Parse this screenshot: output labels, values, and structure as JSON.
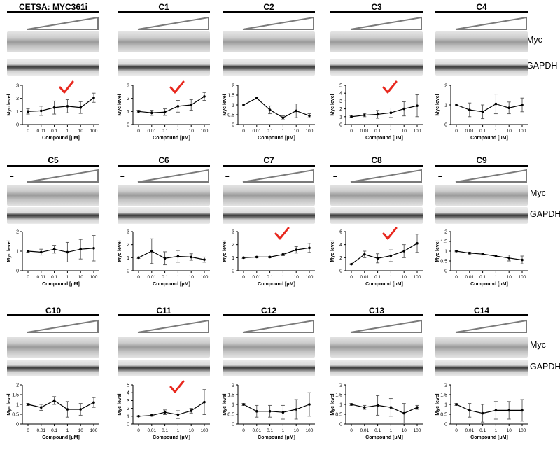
{
  "row_labels": {
    "band": "Myc",
    "loading": "GAPDH"
  },
  "vehicle_mark": "–",
  "check_color": "#e8281e",
  "panels": [
    {
      "title": "CETSA: MYC361i",
      "checked": true,
      "chart_data": {
        "type": "line",
        "x": [
          "0",
          "0.01",
          "0.1",
          "1",
          "10",
          "100"
        ],
        "values": [
          1.0,
          1.05,
          1.3,
          1.4,
          1.3,
          2.05
        ],
        "errors": [
          0.2,
          0.35,
          0.5,
          0.5,
          0.45,
          0.35
        ],
        "xlabel": "Compound [μM]",
        "ylabel": "Myc level",
        "ylim": [
          0,
          3
        ],
        "yticks": [
          0,
          1,
          2,
          3
        ]
      }
    },
    {
      "title": "C1",
      "checked": true,
      "chart_data": {
        "type": "line",
        "x": [
          "0",
          "0.01",
          "0.1",
          "1",
          "10",
          "100"
        ],
        "values": [
          1.0,
          0.9,
          0.95,
          1.4,
          1.5,
          2.15
        ],
        "errors": [
          0.1,
          0.2,
          0.25,
          0.45,
          0.4,
          0.3
        ],
        "xlabel": "Compound [μM]",
        "ylabel": "Myc level",
        "ylim": [
          0,
          3
        ],
        "yticks": [
          0,
          1,
          2,
          3
        ]
      }
    },
    {
      "title": "C2",
      "checked": false,
      "chart_data": {
        "type": "line",
        "x": [
          "0",
          "0.01",
          "0.1",
          "1",
          "10",
          "100"
        ],
        "values": [
          1.0,
          1.35,
          0.75,
          0.35,
          0.7,
          0.45
        ],
        "errors": [
          0.05,
          0.05,
          0.2,
          0.1,
          0.35,
          0.1
        ],
        "xlabel": "Compound [μM]",
        "ylabel": "Myc level",
        "ylim": [
          0,
          2
        ],
        "yticks": [
          0,
          0.5,
          1.0,
          1.5,
          2.0
        ]
      }
    },
    {
      "title": "C3",
      "checked": true,
      "chart_data": {
        "type": "line",
        "x": [
          "0",
          "0.01",
          "0.1",
          "1",
          "10",
          "100"
        ],
        "values": [
          1.0,
          1.2,
          1.3,
          1.5,
          2.0,
          2.4
        ],
        "errors": [
          0.1,
          0.2,
          0.5,
          0.6,
          0.9,
          1.4
        ],
        "xlabel": "Compound [μM]",
        "ylabel": "Myc level",
        "ylim": [
          0,
          5
        ],
        "yticks": [
          0,
          1,
          2,
          3,
          4,
          5
        ]
      }
    },
    {
      "title": "C4",
      "checked": false,
      "chart_data": {
        "type": "line",
        "x": [
          "0",
          "0.01",
          "0.1",
          "1",
          "10",
          "100"
        ],
        "values": [
          1.0,
          0.75,
          0.65,
          1.05,
          0.85,
          1.0
        ],
        "errors": [
          0.05,
          0.35,
          0.35,
          0.5,
          0.3,
          0.35
        ],
        "xlabel": "Compound [μM]",
        "ylabel": "Myc level",
        "ylim": [
          0,
          2
        ],
        "yticks": [
          0,
          1,
          2
        ]
      }
    },
    {
      "title": "C5",
      "checked": false,
      "chart_data": {
        "type": "line",
        "x": [
          "0",
          "0.01",
          "0.1",
          "1",
          "10",
          "100"
        ],
        "values": [
          1.0,
          0.95,
          1.1,
          0.95,
          1.1,
          1.15
        ],
        "errors": [
          0.05,
          0.15,
          0.2,
          0.5,
          0.5,
          0.65
        ],
        "xlabel": "Compound [μM]",
        "ylabel": "Myc level",
        "ylim": [
          0,
          2
        ],
        "yticks": [
          0,
          1,
          2
        ]
      }
    },
    {
      "title": "C6",
      "checked": false,
      "chart_data": {
        "type": "line",
        "x": [
          "0",
          "0.01",
          "0.1",
          "1",
          "10",
          "100"
        ],
        "values": [
          1.0,
          1.5,
          0.95,
          1.1,
          1.05,
          0.85
        ],
        "errors": [
          0.05,
          0.95,
          0.5,
          0.45,
          0.25,
          0.2
        ],
        "xlabel": "Compound [μM]",
        "ylabel": "Myc level",
        "ylim": [
          0,
          3
        ],
        "yticks": [
          0,
          1,
          2,
          3
        ]
      }
    },
    {
      "title": "C7",
      "checked": true,
      "chart_data": {
        "type": "line",
        "x": [
          "0",
          "0.01",
          "0.1",
          "1",
          "10",
          "100"
        ],
        "values": [
          1.0,
          1.05,
          1.05,
          1.25,
          1.6,
          1.75
        ],
        "errors": [
          0.05,
          0.05,
          0.05,
          0.1,
          0.25,
          0.35
        ],
        "xlabel": "Compound [μM]",
        "ylabel": "Myc level",
        "ylim": [
          0,
          3
        ],
        "yticks": [
          0,
          1,
          2,
          3
        ]
      }
    },
    {
      "title": "C8",
      "checked": true,
      "chart_data": {
        "type": "line",
        "x": [
          "0",
          "0.01",
          "0.1",
          "1",
          "10",
          "100"
        ],
        "values": [
          1.0,
          2.5,
          1.9,
          2.3,
          3.0,
          4.2
        ],
        "errors": [
          0.05,
          0.5,
          0.7,
          0.9,
          1.0,
          1.4
        ],
        "xlabel": "Compound [μM]",
        "ylabel": "Myc level",
        "ylim": [
          0,
          6
        ],
        "yticks": [
          0,
          2,
          4,
          6
        ]
      }
    },
    {
      "title": "C9",
      "checked": false,
      "chart_data": {
        "type": "line",
        "x": [
          "0",
          "0.01",
          "0.1",
          "1",
          "10",
          "100"
        ],
        "values": [
          1.0,
          0.9,
          0.85,
          0.75,
          0.65,
          0.55
        ],
        "errors": [
          0.03,
          0.05,
          0.05,
          0.05,
          0.15,
          0.2
        ],
        "xlabel": "Compound [μM]",
        "ylabel": "Myc level",
        "ylim": [
          0,
          2
        ],
        "yticks": [
          0,
          0.5,
          1.0,
          1.5,
          2.0
        ]
      }
    },
    {
      "title": "C10",
      "checked": false,
      "chart_data": {
        "type": "line",
        "x": [
          "0",
          "0.01",
          "0.1",
          "1",
          "10",
          "100"
        ],
        "values": [
          1.0,
          0.85,
          1.2,
          0.75,
          0.75,
          1.1
        ],
        "errors": [
          0.05,
          0.15,
          0.2,
          0.4,
          0.3,
          0.25
        ],
        "xlabel": "Compound [μM]",
        "ylabel": "Myc level",
        "ylim": [
          0,
          2
        ],
        "yticks": [
          0,
          0.5,
          1.0,
          1.5,
          2.0
        ]
      }
    },
    {
      "title": "C11",
      "checked": true,
      "chart_data": {
        "type": "line",
        "x": [
          "0",
          "0.01",
          "0.1",
          "1",
          "10",
          "100"
        ],
        "values": [
          1.0,
          1.1,
          1.5,
          1.2,
          1.7,
          2.8
        ],
        "errors": [
          0.05,
          0.1,
          0.3,
          0.5,
          0.3,
          1.6
        ],
        "xlabel": "Compound [μM]",
        "ylabel": "Myc level",
        "ylim": [
          0,
          5
        ],
        "yticks": [
          0,
          1,
          2,
          3,
          4,
          5
        ]
      }
    },
    {
      "title": "C12",
      "checked": false,
      "chart_data": {
        "type": "line",
        "x": [
          "0",
          "0.01",
          "0.1",
          "1",
          "10",
          "100"
        ],
        "values": [
          1.0,
          0.65,
          0.65,
          0.6,
          0.75,
          1.0
        ],
        "errors": [
          0.05,
          0.3,
          0.3,
          0.35,
          0.5,
          0.6
        ],
        "xlabel": "Compound [μM]",
        "ylabel": "Myc level",
        "ylim": [
          0,
          2
        ],
        "yticks": [
          0,
          0.5,
          1.0,
          1.5,
          2.0
        ]
      }
    },
    {
      "title": "C13",
      "checked": false,
      "chart_data": {
        "type": "line",
        "x": [
          "0",
          "0.01",
          "0.1",
          "1",
          "10",
          "100"
        ],
        "values": [
          1.0,
          0.85,
          0.95,
          0.85,
          0.55,
          0.85
        ],
        "errors": [
          0.05,
          0.1,
          0.5,
          0.45,
          0.5,
          0.1
        ],
        "xlabel": "Compound [μM]",
        "ylabel": "Myc level",
        "ylim": [
          0,
          2
        ],
        "yticks": [
          0,
          0.5,
          1.0,
          1.5,
          2.0
        ]
      }
    },
    {
      "title": "C14",
      "checked": false,
      "chart_data": {
        "type": "line",
        "x": [
          "0",
          "0.01",
          "0.1",
          "1",
          "10",
          "100"
        ],
        "values": [
          1.0,
          0.7,
          0.55,
          0.7,
          0.7,
          0.7
        ],
        "errors": [
          0.05,
          0.35,
          0.45,
          0.45,
          0.45,
          0.55
        ],
        "xlabel": "Compound [μM]",
        "ylabel": "Myc level",
        "ylim": [
          0,
          2
        ],
        "yticks": [
          0,
          0.5,
          1.0,
          1.5,
          2.0
        ]
      }
    }
  ]
}
